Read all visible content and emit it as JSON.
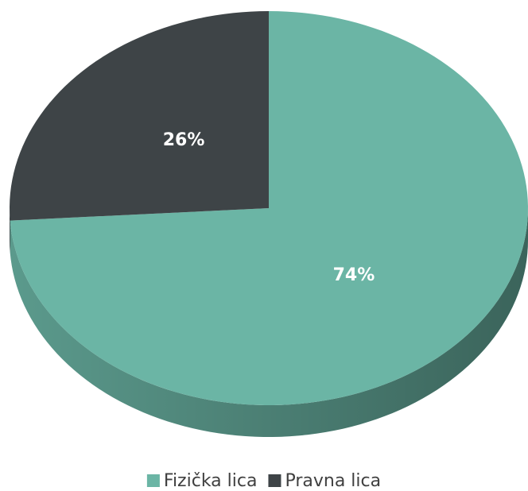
{
  "chart_data": {
    "type": "pie",
    "categories": [
      "Fizička lica",
      "Pravna lica"
    ],
    "values": [
      74,
      26
    ],
    "value_labels": [
      "74%",
      "26%"
    ],
    "colors": [
      "#6bb5a5",
      "#3e4447"
    ]
  }
}
